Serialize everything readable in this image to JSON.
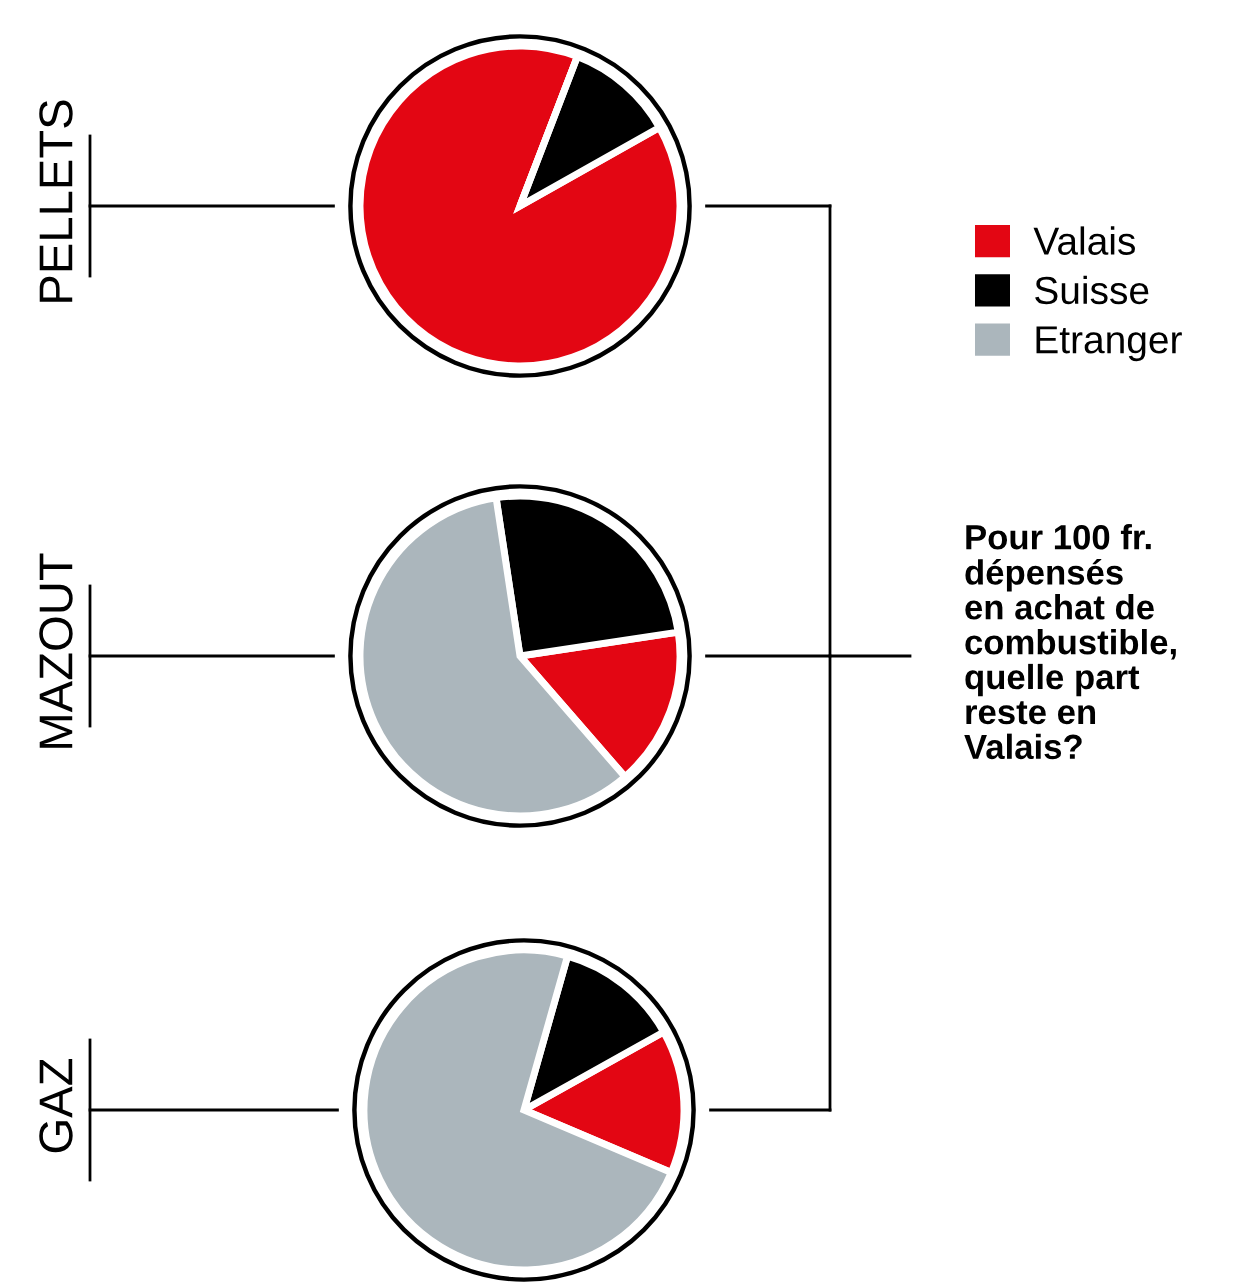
{
  "chart_data": [
    {
      "type": "pie",
      "title": "PELLETS",
      "categories": [
        "Valais",
        "Suisse",
        "Etranger"
      ],
      "values": [
        89,
        11,
        0
      ],
      "colors": [
        "#e30613",
        "#000000",
        "#abb6bc"
      ],
      "legend": "right"
    },
    {
      "type": "pie",
      "title": "MAZOUT",
      "categories": [
        null,
        null,
        null
      ],
      "values": [
        16,
        25,
        59
      ],
      "colors": [
        "#e30613",
        "#000000",
        "#abb6bc"
      ]
    },
    {
      "type": "pie",
      "title": "GAZ",
      "categories": [
        null,
        null,
        null
      ],
      "values": [
        14.5,
        12.5,
        73
      ],
      "colors": [
        "#e30613",
        "#000000",
        "#abb6bc"
      ]
    },
    {
      "type": "other",
      "annotations": [
        "Pour 100 fr.\ndépensés\nen achat de\ncombustible,\nquelle part\nreste en\nValais?"
      ]
    }
  ]
}
